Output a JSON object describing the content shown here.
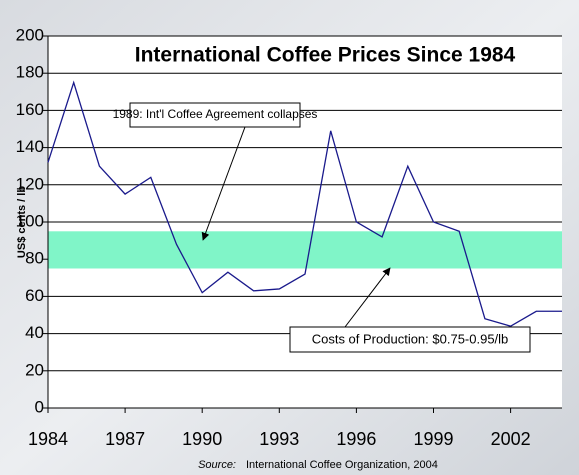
{
  "chart_data": {
    "type": "line",
    "title": "International Coffee Prices Since 1984",
    "y_label": "US$ cents / lb",
    "source_label": "Source:",
    "source": "International Coffee Organization, 2004",
    "x": [
      1984,
      1985,
      1986,
      1987,
      1988,
      1989,
      1990,
      1991,
      1992,
      1993,
      1994,
      1995,
      1996,
      1997,
      1998,
      1999,
      2000,
      2001,
      2002,
      2003,
      2004
    ],
    "values": [
      132,
      175,
      130,
      115,
      124,
      88,
      62,
      73,
      63,
      64,
      72,
      149,
      100,
      92,
      130,
      100,
      95,
      48,
      44,
      52,
      52
    ],
    "color": "#1a1a8c",
    "xlim": [
      1984,
      2004
    ],
    "xticks": [
      1984,
      1987,
      1990,
      1993,
      1996,
      1999,
      2002
    ],
    "ylim": [
      0,
      200
    ],
    "yticks": [
      0,
      20,
      40,
      60,
      80,
      100,
      120,
      140,
      160,
      180,
      200
    ],
    "grid": true,
    "band": [
      75,
      95
    ],
    "band_color": "#80f5c8",
    "annotations": [
      "1989: Int'l Coffee Agreement collapses",
      "Costs of Production: $0.75-0.95/lb"
    ]
  }
}
